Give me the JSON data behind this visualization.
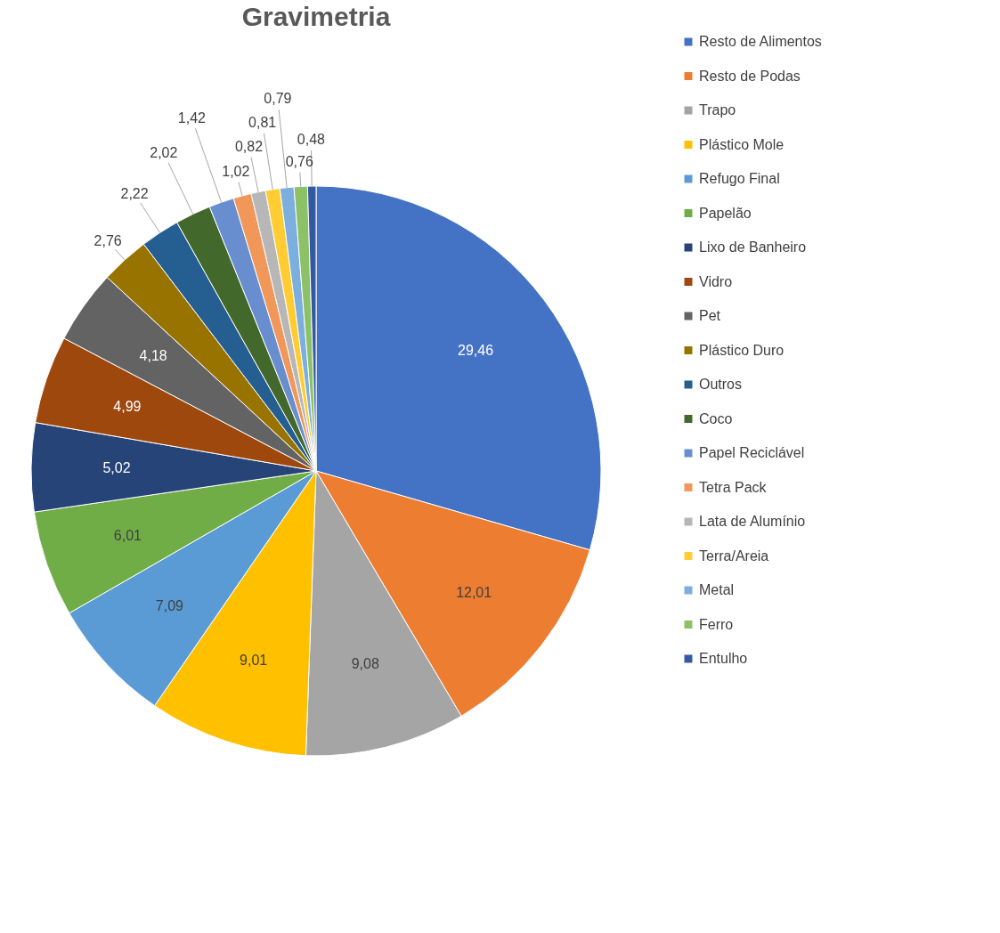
{
  "chart_data": {
    "type": "pie",
    "title": "Gravimetria",
    "legend": "right",
    "categories": [
      "Resto de Alimentos",
      "Resto de Podas",
      "Trapo",
      "Plástico Mole",
      "Refugo Final",
      "Papelão",
      "Lixo de Banheiro",
      "Vidro",
      "Pet",
      "Plástico Duro",
      "Outros",
      "Coco",
      "Papel Reciclável",
      "Tetra Pack",
      "Lata de Alumínio",
      "Terra/Areia",
      "Metal",
      "Ferro",
      "Entulho"
    ],
    "values": [
      29.46,
      12.01,
      9.08,
      9.01,
      7.09,
      6.01,
      5.02,
      4.99,
      4.18,
      2.76,
      2.22,
      2.02,
      1.42,
      1.02,
      0.82,
      0.81,
      0.79,
      0.76,
      0.48
    ],
    "value_labels": [
      "29,46",
      "12,01",
      "9,08",
      "9,01",
      "7,09",
      "6,01",
      "5,02",
      "4,99",
      "4,18",
      "2,76",
      "2,22",
      "2,02",
      "1,42",
      "1,02",
      "0,82",
      "0,81",
      "0,79",
      "0,76",
      "0,48"
    ],
    "colors": [
      "#4472c4",
      "#ed7d31",
      "#a5a5a5",
      "#ffc000",
      "#5b9bd5",
      "#70ad47",
      "#264478",
      "#9e480e",
      "#636363",
      "#997300",
      "#255e91",
      "#43682b",
      "#698ed0",
      "#f1975a",
      "#b7b7b7",
      "#ffcd33",
      "#7cafdd",
      "#8cc168",
      "#335aa1"
    ]
  }
}
